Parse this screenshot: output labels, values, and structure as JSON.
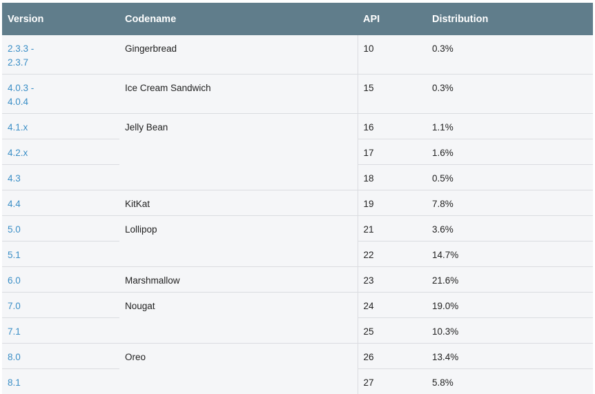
{
  "headers": {
    "version": "Version",
    "codename": "Codename",
    "api": "API",
    "distribution": "Distribution"
  },
  "rows": [
    {
      "version_line1": "2.3.3 -",
      "version_line2": "2.3.7",
      "codename": "Gingerbread",
      "api": "10",
      "distribution": "0.3%"
    },
    {
      "version_line1": "4.0.3 -",
      "version_line2": "4.0.4",
      "codename": "Ice Cream Sandwich",
      "api": "15",
      "distribution": "0.3%"
    },
    {
      "version": "4.1.x",
      "codename": "Jelly Bean",
      "api": "16",
      "distribution": "1.1%"
    },
    {
      "version": "4.2.x",
      "api": "17",
      "distribution": "1.6%"
    },
    {
      "version": "4.3",
      "api": "18",
      "distribution": "0.5%"
    },
    {
      "version": "4.4",
      "codename": "KitKat",
      "api": "19",
      "distribution": "7.8%"
    },
    {
      "version": "5.0",
      "codename": "Lollipop",
      "api": "21",
      "distribution": "3.6%"
    },
    {
      "version": "5.1",
      "api": "22",
      "distribution": "14.7%"
    },
    {
      "version": "6.0",
      "codename": "Marshmallow",
      "api": "23",
      "distribution": "21.6%"
    },
    {
      "version": "7.0",
      "codename": "Nougat",
      "api": "24",
      "distribution": "19.0%"
    },
    {
      "version": "7.1",
      "api": "25",
      "distribution": "10.3%"
    },
    {
      "version": "8.0",
      "codename": "Oreo",
      "api": "26",
      "distribution": "13.4%"
    },
    {
      "version": "8.1",
      "api": "27",
      "distribution": "5.8%"
    }
  ],
  "colors": {
    "header_bg": "#607d8b",
    "link": "#3a8ec6",
    "row_bg": "#f5f6f8"
  }
}
